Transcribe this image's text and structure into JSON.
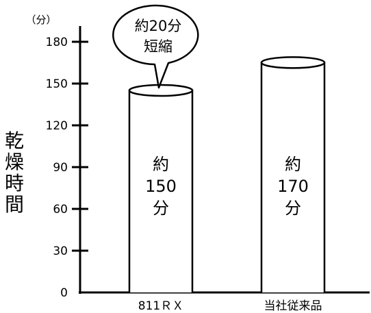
{
  "chart_data": {
    "type": "bar",
    "categories": [
      "811ＲＸ",
      "当社従来品"
    ],
    "values": [
      150,
      170
    ],
    "series": [
      {
        "values": [
          150,
          170
        ]
      }
    ],
    "bar_labels": [
      [
        "約",
        "150",
        "分"
      ],
      [
        "約",
        "170",
        "分"
      ]
    ],
    "ylabel": "乾燥時間",
    "yunit": "（分）",
    "ylim": [
      0,
      180
    ],
    "yticks": [
      0,
      30,
      60,
      90,
      120,
      150,
      180
    ],
    "grid": false,
    "annotation": {
      "lines": [
        "約20分",
        "短縮"
      ],
      "target_category": "811ＲＸ"
    }
  }
}
